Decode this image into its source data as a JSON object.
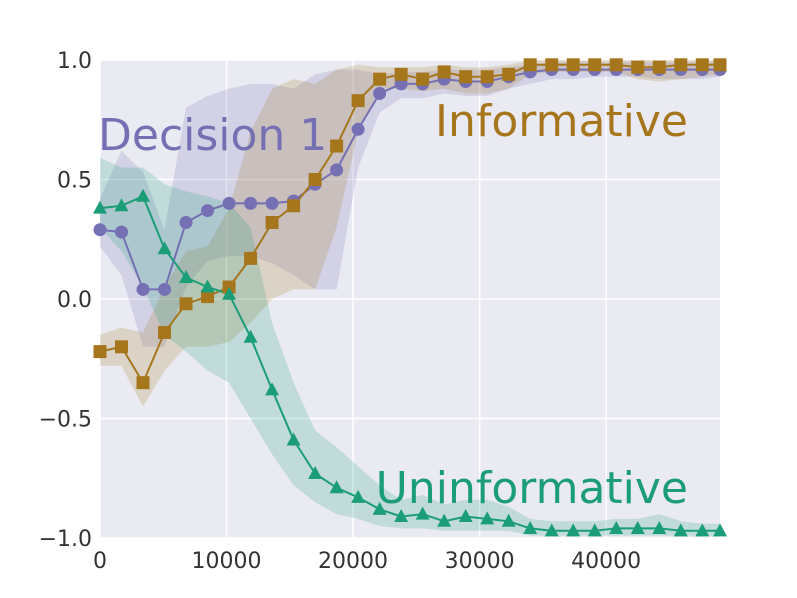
{
  "chart_data": {
    "type": "line",
    "title": "",
    "xlabel": "",
    "ylabel": "",
    "xlim": [
      0,
      49000
    ],
    "ylim": [
      -1.0,
      1.0
    ],
    "grid": true,
    "xticks": [
      0,
      10000,
      20000,
      30000,
      40000
    ],
    "xtick_labels": [
      "0",
      "10000",
      "20000",
      "30000",
      "40000"
    ],
    "yticks": [
      1.0,
      0.5,
      0.0,
      -0.5,
      -1.0
    ],
    "ytick_labels": [
      "1.0",
      "0.5",
      "0.0",
      "−0.5",
      "−1.0"
    ],
    "series": [
      {
        "name": "Decision 1",
        "label": "Decision 1",
        "marker": "circle",
        "color": "#7570b3",
        "x": [
          0,
          1700,
          3400,
          5100,
          6800,
          8500,
          10200,
          11900,
          13600,
          15300,
          17000,
          18700,
          20400,
          22100,
          23800,
          25500,
          27200,
          28900,
          30600,
          32300,
          34000,
          35700,
          37400,
          39100,
          40800,
          42500,
          44200,
          45900,
          47600,
          49000
        ],
        "y": [
          0.29,
          0.28,
          0.04,
          0.04,
          0.32,
          0.37,
          0.4,
          0.4,
          0.4,
          0.41,
          0.48,
          0.54,
          0.71,
          0.86,
          0.9,
          0.9,
          0.92,
          0.91,
          0.91,
          0.93,
          0.95,
          0.96,
          0.96,
          0.96,
          0.96,
          0.96,
          0.96,
          0.96,
          0.96,
          0.96
        ],
        "lower": [
          0.22,
          0.1,
          -0.2,
          -0.2,
          0.05,
          0.16,
          0.18,
          0.18,
          0.15,
          0.1,
          0.04,
          0.04,
          0.55,
          0.78,
          0.84,
          0.84,
          0.86,
          0.85,
          0.85,
          0.88,
          0.9,
          0.92,
          0.92,
          0.93,
          0.93,
          0.93,
          0.92,
          0.92,
          0.92,
          0.93
        ],
        "upper": [
          0.42,
          0.62,
          0.53,
          0.29,
          0.8,
          0.85,
          0.88,
          0.9,
          0.9,
          0.88,
          0.94,
          0.96,
          0.96,
          0.94,
          0.95,
          0.95,
          0.96,
          0.96,
          0.96,
          0.97,
          0.98,
          0.99,
          0.99,
          0.99,
          0.99,
          0.99,
          0.99,
          0.99,
          0.99,
          0.99
        ]
      },
      {
        "name": "Informative",
        "label": "Informative",
        "marker": "square",
        "color": "#a6761d",
        "x": [
          0,
          1700,
          3400,
          5100,
          6800,
          8500,
          10200,
          11900,
          13600,
          15300,
          17000,
          18700,
          20400,
          22100,
          23800,
          25500,
          27200,
          28900,
          30600,
          32300,
          34000,
          35700,
          37400,
          39100,
          40800,
          42500,
          44200,
          45900,
          47600,
          49000
        ],
        "y": [
          -0.22,
          -0.2,
          -0.35,
          -0.14,
          -0.02,
          0.01,
          0.05,
          0.17,
          0.32,
          0.39,
          0.5,
          0.64,
          0.83,
          0.92,
          0.94,
          0.92,
          0.95,
          0.93,
          0.93,
          0.94,
          0.98,
          0.98,
          0.98,
          0.98,
          0.98,
          0.97,
          0.97,
          0.98,
          0.98,
          0.98
        ],
        "lower": [
          -0.28,
          -0.28,
          -0.45,
          -0.3,
          -0.2,
          -0.2,
          -0.18,
          -0.1,
          0.0,
          0.04,
          0.04,
          0.3,
          0.7,
          0.88,
          0.88,
          0.87,
          0.88,
          0.86,
          0.86,
          0.88,
          0.94,
          0.95,
          0.95,
          0.95,
          0.95,
          0.92,
          0.91,
          0.92,
          0.93,
          0.94
        ],
        "upper": [
          -0.15,
          -0.12,
          -0.14,
          0.05,
          0.2,
          0.22,
          0.38,
          0.7,
          0.88,
          0.92,
          0.9,
          0.96,
          0.98,
          0.97,
          0.97,
          0.97,
          0.98,
          0.97,
          0.97,
          0.98,
          1.0,
          1.0,
          1.0,
          1.0,
          1.0,
          1.0,
          1.0,
          1.0,
          1.0,
          1.0
        ]
      },
      {
        "name": "Uninformative",
        "label": "Uninformative",
        "marker": "triangle",
        "color": "#1b9e77",
        "x": [
          0,
          1700,
          3400,
          5100,
          6800,
          8500,
          10200,
          11900,
          13600,
          15300,
          17000,
          18700,
          20400,
          22100,
          23800,
          25500,
          27200,
          28900,
          30600,
          32300,
          34000,
          35700,
          37400,
          39100,
          40800,
          42500,
          44200,
          45900,
          47600,
          49000
        ],
        "y": [
          0.38,
          0.39,
          0.43,
          0.21,
          0.09,
          0.05,
          0.02,
          -0.16,
          -0.38,
          -0.59,
          -0.73,
          -0.79,
          -0.83,
          -0.88,
          -0.91,
          -0.9,
          -0.93,
          -0.91,
          -0.92,
          -0.93,
          -0.96,
          -0.97,
          -0.97,
          -0.97,
          -0.96,
          -0.96,
          -0.96,
          -0.97,
          -0.97,
          -0.97
        ],
        "lower": [
          0.3,
          0.2,
          0.05,
          -0.15,
          -0.22,
          -0.3,
          -0.35,
          -0.5,
          -0.65,
          -0.78,
          -0.85,
          -0.9,
          -0.92,
          -0.95,
          -0.96,
          -0.96,
          -0.97,
          -0.97,
          -0.97,
          -0.97,
          -0.99,
          -0.99,
          -0.99,
          -0.99,
          -0.99,
          -0.99,
          -0.99,
          -0.99,
          -0.99,
          -0.99
        ],
        "upper": [
          0.59,
          0.55,
          0.55,
          0.48,
          0.45,
          0.43,
          0.4,
          0.3,
          -0.1,
          -0.35,
          -0.55,
          -0.62,
          -0.7,
          -0.78,
          -0.84,
          -0.82,
          -0.86,
          -0.84,
          -0.84,
          -0.87,
          -0.92,
          -0.93,
          -0.93,
          -0.93,
          -0.92,
          -0.92,
          -0.9,
          -0.93,
          -0.94,
          -0.94
        ]
      }
    ]
  }
}
